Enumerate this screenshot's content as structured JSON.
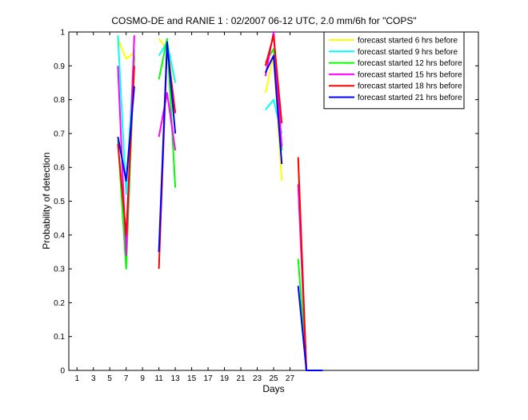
{
  "chart_data": {
    "type": "line",
    "title": "COSMO-DE and RANIE 1 : 02/2007 06-12 UTC, 2.0 mm/6h for \"COPS\"",
    "xlabel": "Days",
    "ylabel": "Probability of detection",
    "xlim": [
      0,
      50
    ],
    "ylim": [
      0,
      1
    ],
    "xticks": [
      1,
      3,
      5,
      7,
      9,
      11,
      13,
      15,
      17,
      19,
      21,
      23,
      25,
      27
    ],
    "yticks": [
      0,
      0.1,
      0.2,
      0.3,
      0.4,
      0.5,
      0.6,
      0.7,
      0.8,
      0.9,
      1
    ],
    "legend_position": "top-right",
    "series": [
      {
        "name": "forecast started 6 hrs before",
        "color": "#ffff00",
        "points": [
          [
            6,
            0.98
          ],
          [
            7,
            0.92
          ],
          [
            8,
            0.94
          ],
          null,
          [
            11,
            0.98
          ],
          [
            12,
            0.95
          ],
          [
            13,
            0.85
          ],
          null,
          [
            24,
            0.82
          ],
          [
            25,
            0.93
          ],
          [
            26,
            0.56
          ],
          null,
          [
            28,
            0.62
          ],
          [
            29,
            0.0
          ],
          [
            31,
            0.0
          ]
        ]
      },
      {
        "name": "forecast started 9 hrs before",
        "color": "#00ffff",
        "points": [
          [
            6,
            0.99
          ],
          [
            7,
            0.52
          ],
          [
            8,
            0.95
          ],
          null,
          [
            11,
            0.93
          ],
          [
            12,
            0.97
          ],
          [
            13,
            0.85
          ],
          null,
          [
            24,
            0.77
          ],
          [
            25,
            0.8
          ],
          [
            26,
            0.7
          ],
          null,
          [
            28,
            0.55
          ],
          [
            29,
            0.0
          ],
          [
            31,
            0.0
          ]
        ]
      },
      {
        "name": "forecast started 12 hrs before",
        "color": "#00ff00",
        "points": [
          [
            6,
            0.68
          ],
          [
            7,
            0.3
          ],
          [
            8,
            0.93
          ],
          null,
          [
            11,
            0.86
          ],
          [
            12,
            0.98
          ],
          [
            13,
            0.54
          ],
          null,
          [
            24,
            0.91
          ],
          [
            25,
            0.95
          ],
          [
            26,
            0.65
          ],
          null,
          [
            28,
            0.33
          ],
          [
            29,
            0.0
          ],
          [
            31,
            0.0
          ]
        ]
      },
      {
        "name": "forecast started 15 hrs before",
        "color": "#ff00ff",
        "points": [
          [
            6,
            0.9
          ],
          [
            7,
            0.34
          ],
          [
            8,
            0.99
          ],
          null,
          [
            11,
            0.69
          ],
          [
            12,
            0.82
          ],
          [
            13,
            0.65
          ],
          null,
          [
            24,
            0.87
          ],
          [
            25,
            1.0
          ],
          [
            26,
            0.66
          ],
          null,
          [
            28,
            0.55
          ],
          [
            29,
            0.0
          ],
          [
            31,
            0.0
          ]
        ]
      },
      {
        "name": "forecast started 18 hrs before",
        "color": "#ff0000",
        "points": [
          [
            6,
            0.67
          ],
          [
            7,
            0.4
          ],
          [
            8,
            0.9
          ],
          null,
          [
            11,
            0.3
          ],
          [
            12,
            0.96
          ],
          [
            13,
            0.76
          ],
          null,
          [
            24,
            0.9
          ],
          [
            25,
            0.99
          ],
          [
            26,
            0.73
          ],
          null,
          [
            28,
            0.63
          ],
          [
            29,
            0.0
          ],
          [
            31,
            0.0
          ]
        ]
      },
      {
        "name": "forecast started 21 hrs before",
        "color": "#0000ff",
        "points": [
          [
            6,
            0.69
          ],
          [
            7,
            0.56
          ],
          [
            8,
            0.84
          ],
          null,
          [
            11,
            0.35
          ],
          [
            12,
            0.97
          ],
          [
            13,
            0.7
          ],
          null,
          [
            24,
            0.88
          ],
          [
            25,
            0.93
          ],
          [
            26,
            0.61
          ],
          null,
          [
            28,
            0.25
          ],
          [
            29,
            0.0
          ],
          [
            31,
            0.0
          ]
        ]
      }
    ]
  }
}
